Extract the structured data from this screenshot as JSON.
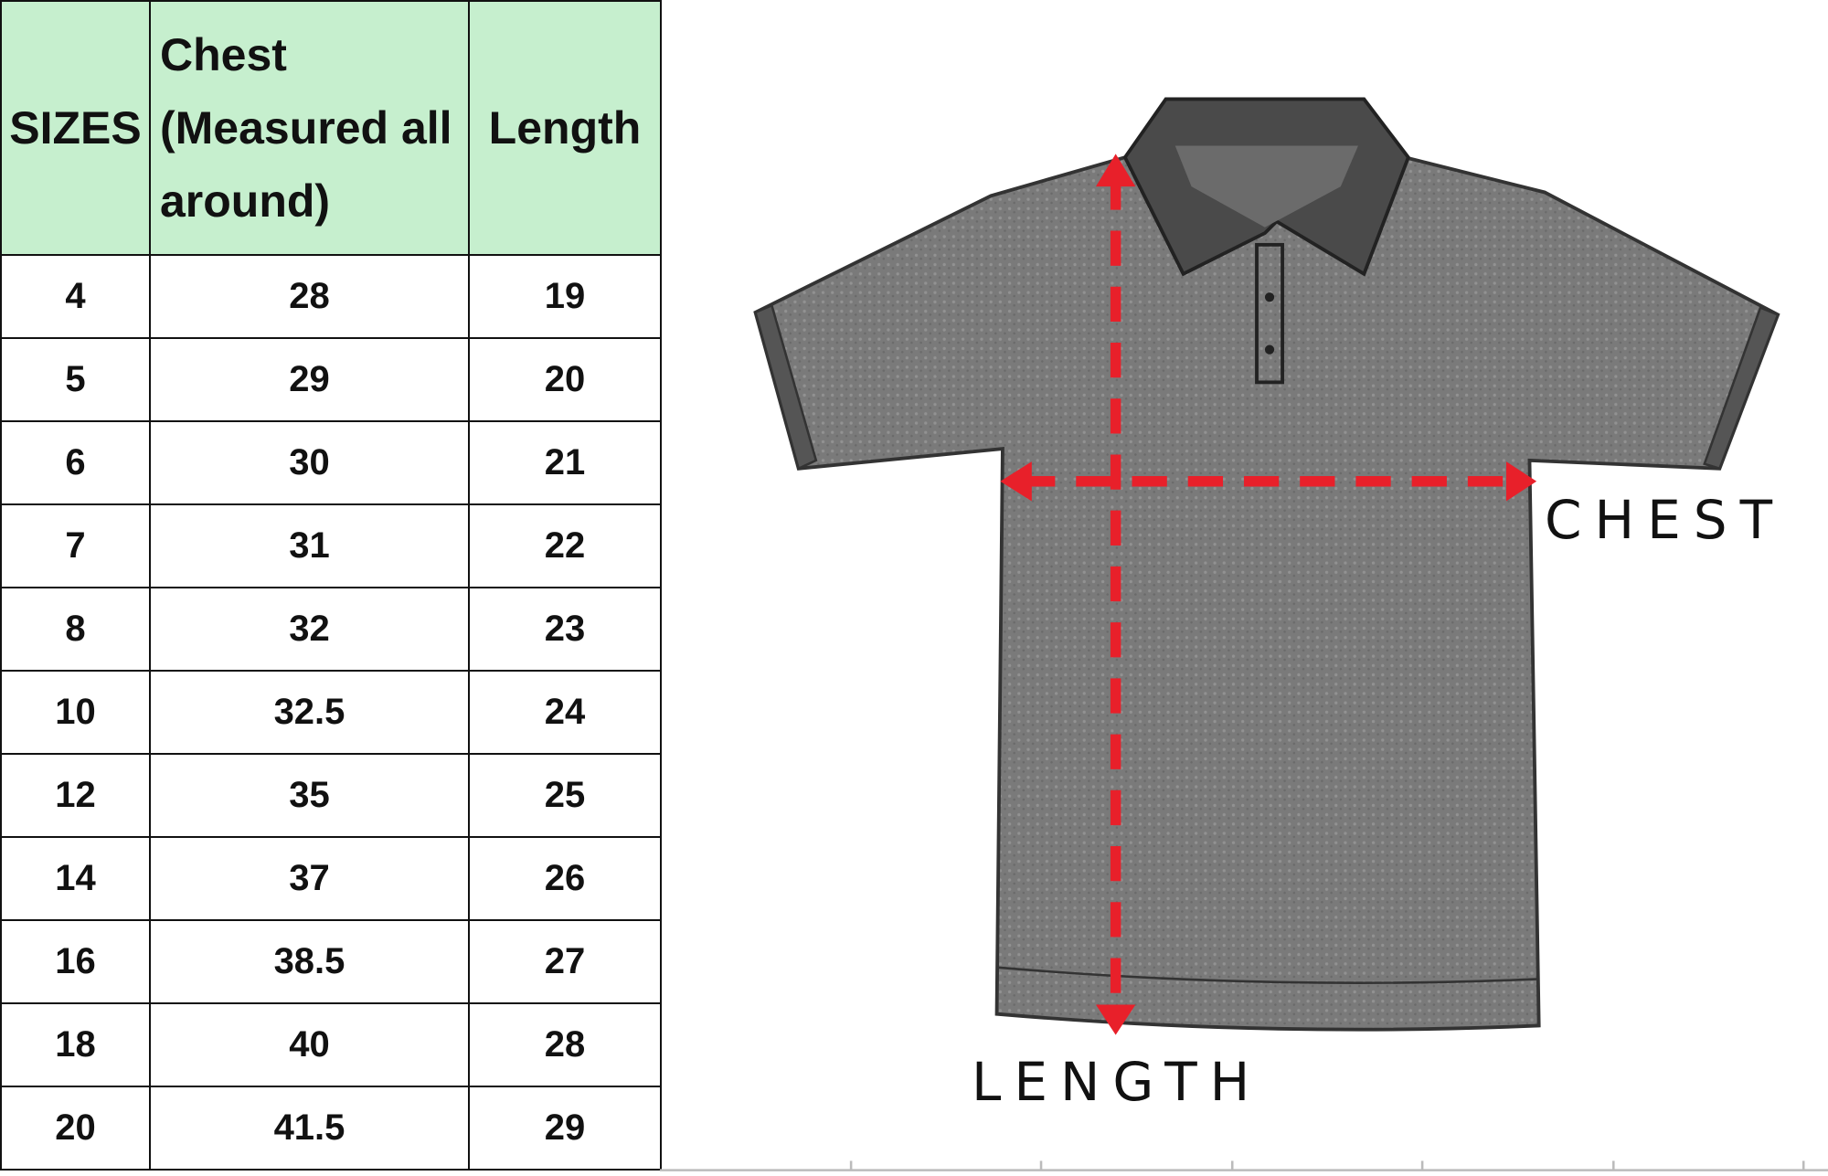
{
  "table": {
    "headers": [
      "SIZES",
      "Chest (Measured all around)",
      "Length"
    ],
    "header_color": "#c6efce",
    "rows": [
      [
        "4",
        "28",
        "19"
      ],
      [
        "5",
        "29",
        "20"
      ],
      [
        "6",
        "30",
        "21"
      ],
      [
        "7",
        "31",
        "22"
      ],
      [
        "8",
        "32",
        "23"
      ],
      [
        "10",
        "32.5",
        "24"
      ],
      [
        "12",
        "35",
        "25"
      ],
      [
        "14",
        "37",
        "26"
      ],
      [
        "16",
        "38.5",
        "27"
      ],
      [
        "18",
        "40",
        "28"
      ],
      [
        "20",
        "41.5",
        "29"
      ]
    ]
  },
  "diagram": {
    "icon": "polo-shirt-icon",
    "chest_label": "CHEST",
    "length_label": "LENGTH",
    "arrow_color": "#e8202a"
  }
}
